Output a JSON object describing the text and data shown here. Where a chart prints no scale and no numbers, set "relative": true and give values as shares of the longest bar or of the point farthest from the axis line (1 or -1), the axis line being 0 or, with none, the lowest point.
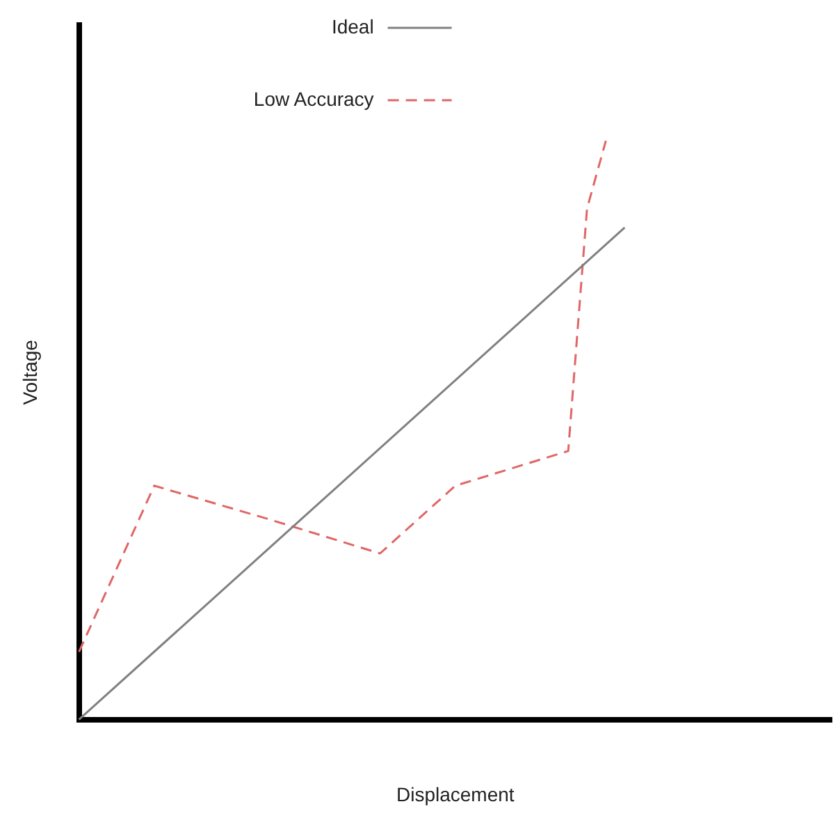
{
  "chart_data": {
    "type": "line",
    "relative": true,
    "xlabel": "Displacement",
    "ylabel": "Voltage",
    "legend": "top",
    "grid": false,
    "marker": "none",
    "categories": [
      null,
      null,
      null,
      null,
      null,
      null,
      null,
      null,
      null,
      null,
      null,
      null,
      null,
      null,
      null,
      null,
      null,
      null,
      null,
      null,
      null,
      null,
      null,
      null,
      null,
      null,
      null,
      null,
      null,
      null,
      null,
      null,
      null,
      null,
      null,
      null,
      null,
      null,
      null,
      null,
      null
    ],
    "series": [
      {
        "name": "Ideal",
        "color": "#808080",
        "line_style": "solid",
        "values": [
          0,
          null,
          null,
          null,
          null,
          null,
          null,
          null,
          null,
          null,
          null,
          null,
          null,
          null,
          null,
          null,
          null,
          null,
          null,
          null,
          null,
          null,
          null,
          null,
          null,
          null,
          null,
          null,
          null,
          0.85,
          null,
          null,
          null,
          null,
          null,
          null,
          null,
          null,
          null,
          null,
          null
        ]
      },
      {
        "name": "Low Accuracy",
        "color": "#e06666",
        "line_style": "dashed",
        "values": [
          0.117,
          null,
          null,
          null,
          0.404,
          null,
          null,
          null,
          null,
          null,
          0.347,
          null,
          null,
          null,
          null,
          null,
          0.287,
          null,
          null,
          null,
          0.404,
          null,
          null,
          null,
          null,
          null,
          0.464,
          0.883,
          1,
          null,
          null,
          null,
          null,
          null,
          null,
          null,
          null,
          null,
          null,
          null,
          null
        ]
      }
    ]
  }
}
